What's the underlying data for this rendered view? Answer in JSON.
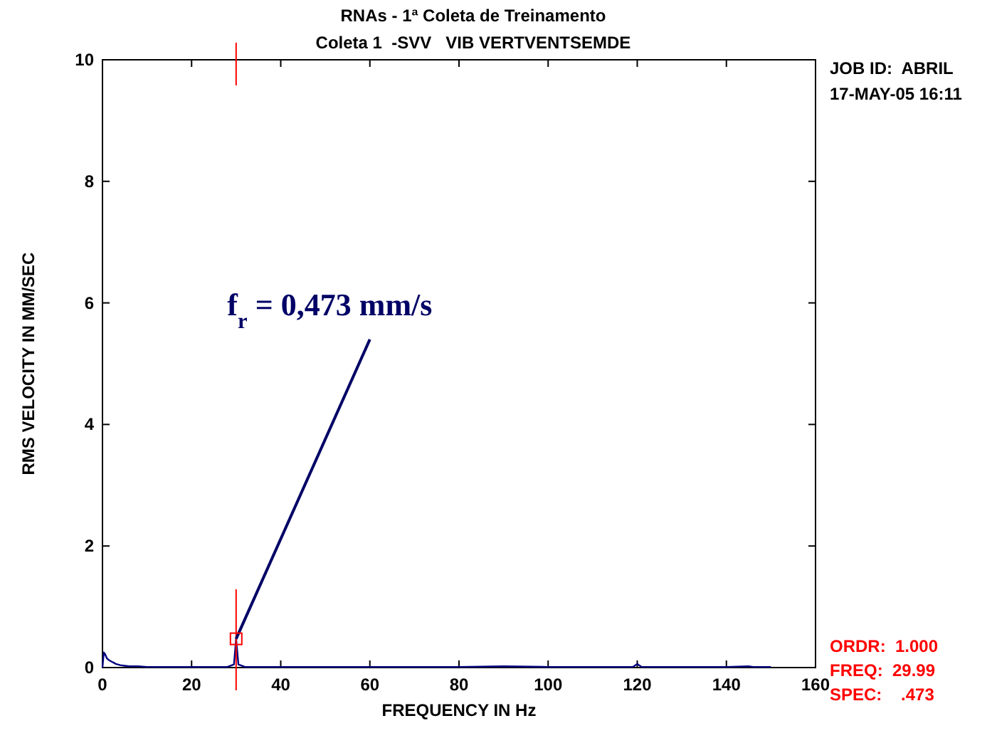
{
  "chart_data": {
    "type": "line",
    "title": "RNAs - 1ª Coleta de Treinamento",
    "subtitle": "Coleta 1  -SVV   VIB VERTVENTSEMDE",
    "xlabel": "FREQUENCY IN Hz",
    "ylabel": "RMS VELOCITY IN MM/SEC",
    "x": [
      0,
      0.3,
      0.6,
      1,
      1.5,
      2,
      2.5,
      3,
      4,
      5,
      6,
      8,
      10,
      12,
      15,
      20,
      25,
      28,
      29.5,
      29.99,
      30.5,
      32,
      40,
      50,
      60,
      70,
      80,
      90,
      100,
      110,
      119,
      120,
      121,
      130,
      140,
      145,
      146,
      150
    ],
    "series": [
      {
        "color": "#000080",
        "values": [
          0,
          0.25,
          0.22,
          0.15,
          0.12,
          0.1,
          0.08,
          0.06,
          0.04,
          0.03,
          0.02,
          0.02,
          0.01,
          0.01,
          0.01,
          0.01,
          0.01,
          0.01,
          0.05,
          0.473,
          0.05,
          0.01,
          0.01,
          0.01,
          0.01,
          0.01,
          0.01,
          0.02,
          0.01,
          0.01,
          0.01,
          0.06,
          0.01,
          0.01,
          0.01,
          0.02,
          0.01,
          0.01
        ]
      }
    ],
    "xlim": [
      0,
      160
    ],
    "xticks": [
      0,
      20,
      40,
      60,
      80,
      100,
      120,
      140,
      160
    ],
    "ylim": [
      0,
      10
    ],
    "yticks": [
      0,
      2,
      4,
      6,
      8,
      10
    ],
    "grid": false,
    "marker": "none",
    "line_style": "solid",
    "ref_lines": [
      {
        "axis": "x",
        "value": 29.99,
        "color": "#ff0000"
      }
    ],
    "annotations": [
      {
        "text": "f$_{r}$ = 0,473 mm/s",
        "x": 29.99,
        "y": 0.473
      },
      "JOB ID:  ABRIL",
      "17-MAY-05 16:11",
      "ORDR:  1.000",
      "FREQ:  29.99",
      "SPEC:    .473"
    ]
  }
}
